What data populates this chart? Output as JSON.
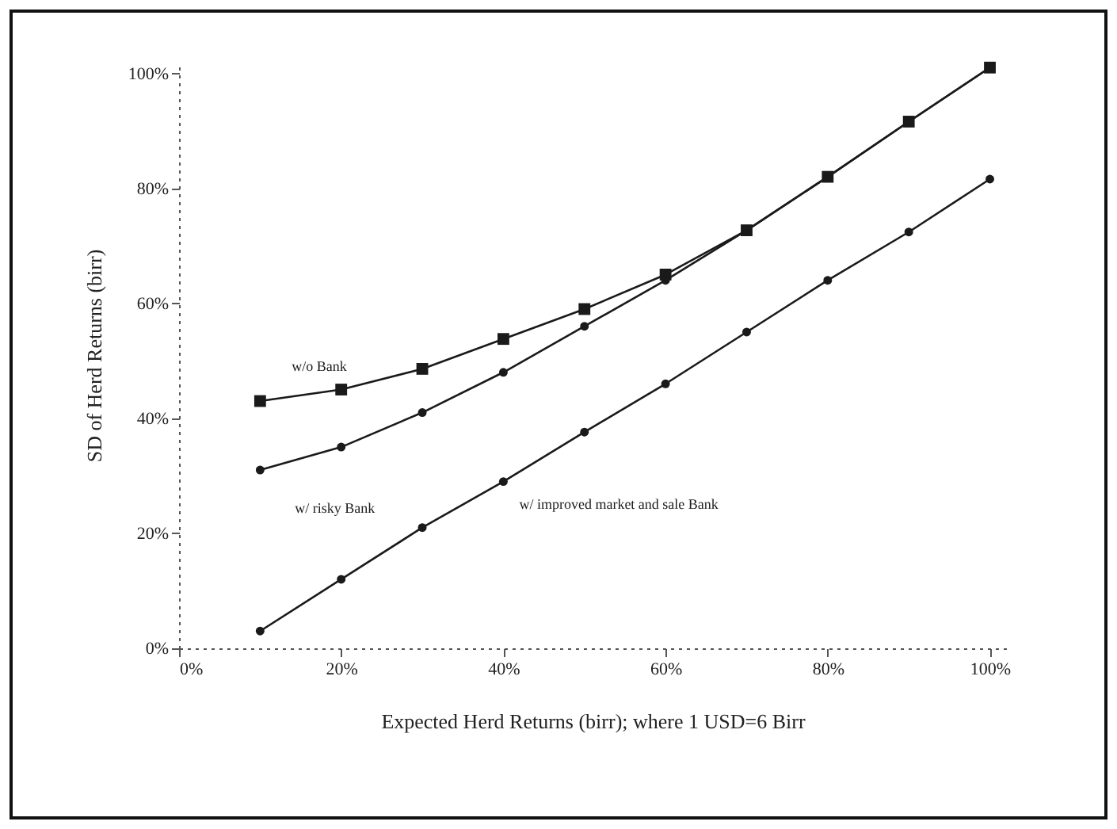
{
  "chart_data": {
    "type": "line",
    "xlabel": "Expected Herd Returns (birr); where 1 USD=6 Birr",
    "ylabel": "SD of Herd Returns (birr)",
    "x": [
      10,
      20,
      30,
      40,
      50,
      60,
      70,
      80,
      90,
      100
    ],
    "series": [
      {
        "name": "w/o Bank",
        "color": "#1a1a1a",
        "marker": "square",
        "values": [
          43,
          45,
          48.6,
          53.8,
          59,
          65,
          72.7,
          82,
          91.6,
          101
        ]
      },
      {
        "name": "w/ risky Bank",
        "color": "#1a1a1a",
        "marker": "circle",
        "values": [
          31,
          35,
          41,
          48,
          56,
          64,
          72.7,
          82,
          91.6,
          101
        ]
      },
      {
        "name": "w/ improved market and sale  Bank",
        "color": "#1a1a1a",
        "marker": "circle",
        "values": [
          3,
          12,
          21,
          29,
          37.6,
          46,
          55,
          64,
          72.4,
          81.6
        ]
      }
    ],
    "xlim": [
      0,
      102
    ],
    "ylim": [
      0,
      102
    ],
    "xticks": [
      {
        "value": 0,
        "label": "0%"
      },
      {
        "value": 20,
        "label": "20%"
      },
      {
        "value": 40,
        "label": "40%"
      },
      {
        "value": 60,
        "label": "60%"
      },
      {
        "value": 80,
        "label": "80%"
      },
      {
        "value": 100,
        "label": "100%"
      }
    ],
    "yticks": [
      {
        "value": 0,
        "label": "0%"
      },
      {
        "value": 20,
        "label": "20%"
      },
      {
        "value": 40,
        "label": "40%"
      },
      {
        "value": 60,
        "label": "60%"
      },
      {
        "value": 80,
        "label": "80%"
      },
      {
        "value": 100,
        "label": "100%"
      }
    ],
    "grid": false
  }
}
